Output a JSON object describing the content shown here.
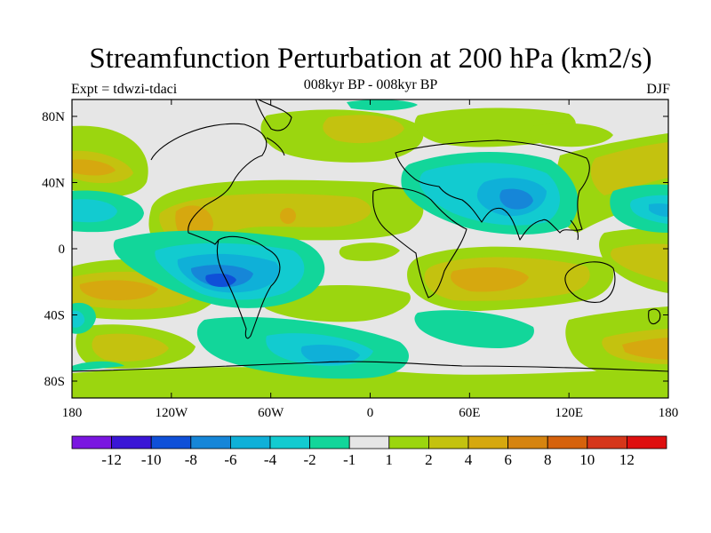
{
  "header": {
    "title": "Streamfunction Perturbation at 200 hPa (km2/s)",
    "expt": "Expt = tdwzi-tdaci",
    "subtitle": "008kyr BP - 008kyr BP",
    "season": "DJF"
  },
  "map": {
    "y_ticks": [
      "80N",
      "40N",
      "0",
      "40S",
      "80S"
    ],
    "x_ticks": [
      "180",
      "120W",
      "60W",
      "0",
      "60E",
      "120E",
      "180"
    ]
  },
  "colorbar": {
    "colors": [
      "#7a16e0",
      "#3a16d6",
      "#0f50d8",
      "#1686d8",
      "#0fb0d8",
      "#12cbd0",
      "#12d69a",
      "#e6e6e6",
      "#9bd60f",
      "#c4c20f",
      "#d6a80f",
      "#d68410",
      "#d6620c",
      "#d6361a",
      "#de0f0f"
    ],
    "labels": [
      "-12",
      "-10",
      "-8",
      "-6",
      "-4",
      "-2",
      "-1",
      "1",
      "2",
      "4",
      "6",
      "8",
      "10",
      "12"
    ]
  }
}
